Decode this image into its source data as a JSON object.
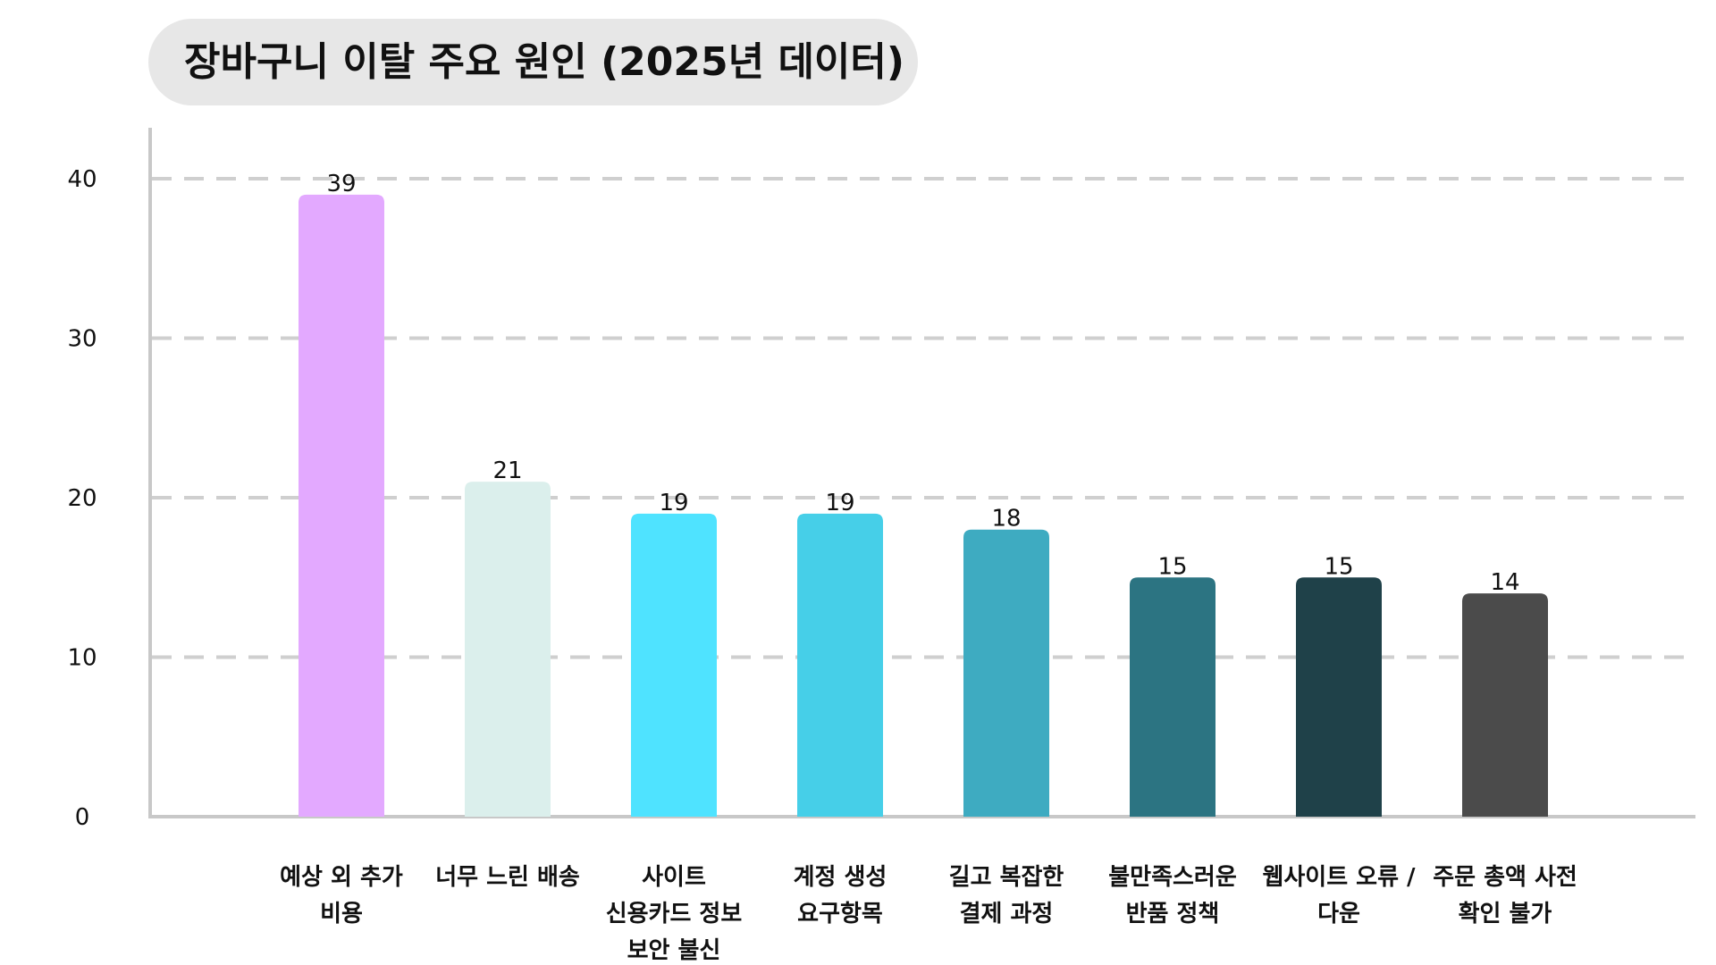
{
  "chart_data": {
    "type": "bar",
    "title": "장바구니 이탈 주요 원인 (2025년 데이터)",
    "categories": [
      [
        "예상 외 추가",
        "비용"
      ],
      [
        "너무 느린 배송"
      ],
      [
        "사이트",
        "신용카드 정보",
        "보안 불신"
      ],
      [
        "계정 생성",
        "요구항목"
      ],
      [
        "길고 복잡한",
        "결제 과정"
      ],
      [
        "불만족스러운",
        "반품 정책"
      ],
      [
        "웹사이트 오류 /",
        "다운"
      ],
      [
        "주문 총액 사전",
        "확인 불가"
      ]
    ],
    "values": [
      39,
      21,
      19,
      19,
      18,
      15,
      15,
      14
    ],
    "colors": [
      "#e3a9ff",
      "#dbefec",
      "#4fe3ff",
      "#46cfe8",
      "#3eabc1",
      "#2c7482",
      "#1f4149",
      "#4b4b4b"
    ],
    "ylim": [
      0,
      40
    ],
    "yticks": [
      0,
      10,
      20,
      30,
      40
    ],
    "grid": true,
    "legend": "none"
  }
}
